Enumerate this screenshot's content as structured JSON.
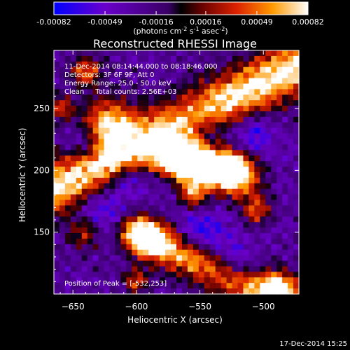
{
  "colorbar": {
    "tick_labels": [
      "-0.00082",
      "-0.00049",
      "-0.00016",
      "0.00016",
      "0.00049",
      "0.00082"
    ],
    "tick_values": [
      -0.00082,
      -0.00049,
      -0.00016,
      0.00016,
      0.00049,
      0.00082
    ],
    "range": [
      -0.00082,
      0.00082
    ],
    "units_prefix": "(photons cm",
    "units_exp1": "-2",
    "units_mid": " s",
    "units_exp2": "-1",
    "units_mid2": " asec",
    "units_exp3": "-2",
    "units_suffix": ")"
  },
  "chart_data": {
    "type": "heatmap",
    "title": "Reconstructed RHESSI Image",
    "xlabel": "Heliocentric X (arcsec)",
    "ylabel": "Heliocentric Y (arcsec)",
    "xlim": [
      -665,
      -472
    ],
    "ylim": [
      100,
      297
    ],
    "x_ticks": [
      -650,
      -600,
      -550,
      -500
    ],
    "x_tick_labels": [
      "−650",
      "−600",
      "−550",
      "−500"
    ],
    "y_ticks": [
      150,
      200,
      250
    ],
    "y_tick_labels": [
      "150",
      "200",
      "250"
    ],
    "info": [
      "11-Dec-2014 08:14:44.000 to 08:18:46.000",
      "Detectors: 3F 6F 9F, Att 0",
      "Energy Range: 25.0 - 50.0 keV",
      "Clean     Total counts: 2.56E+03"
    ],
    "peak_label": "Position of Peak = [-532,253]",
    "peak": [
      -532,
      253
    ],
    "bright_bands": [
      {
        "from": [
          -665,
          185
        ],
        "to": [
          -472,
          285
        ],
        "width": 15,
        "intensity": 0.98
      },
      {
        "from": [
          -600,
          150
        ],
        "to": [
          -472,
          85
        ],
        "width": 11,
        "intensity": 0.8
      },
      {
        "from": [
          -575,
          210
        ],
        "to": [
          -520,
          195
        ],
        "width": 12,
        "intensity": 0.88
      }
    ],
    "blobs": [
      {
        "x": -622,
        "y": 238,
        "r": 14,
        "v": 0.85
      },
      {
        "x": -560,
        "y": 208,
        "r": 12,
        "v": 0.85
      },
      {
        "x": -528,
        "y": 202,
        "r": 10,
        "v": 0.92
      },
      {
        "x": -555,
        "y": 180,
        "r": 8,
        "v": 0.55
      },
      {
        "x": -590,
        "y": 145,
        "r": 10,
        "v": 0.8
      },
      {
        "x": -600,
        "y": 110,
        "r": 7,
        "v": 0.5
      },
      {
        "x": -505,
        "y": 168,
        "r": 8,
        "v": 0.5
      },
      {
        "x": -488,
        "y": 105,
        "r": 10,
        "v": 0.8
      },
      {
        "x": -640,
        "y": 280,
        "r": 8,
        "v": 0.7
      },
      {
        "x": -640,
        "y": 150,
        "r": 9,
        "v": 0.5
      },
      {
        "x": -660,
        "y": 250,
        "r": 7,
        "v": 0.5
      }
    ],
    "dark_spots": [
      {
        "x": -580,
        "y": 202,
        "r": 14
      },
      {
        "x": -548,
        "y": 233,
        "r": 14
      },
      {
        "x": -507,
        "y": 230,
        "r": 12
      },
      {
        "x": -627,
        "y": 168,
        "r": 16
      },
      {
        "x": -640,
        "y": 220,
        "r": 10
      },
      {
        "x": -550,
        "y": 150,
        "r": 14
      },
      {
        "x": -525,
        "y": 122,
        "r": 14
      },
      {
        "x": -608,
        "y": 192,
        "r": 8
      }
    ],
    "background_level": 0.34
  },
  "footer": {
    "date": "17-Dec-2014 15:25"
  }
}
